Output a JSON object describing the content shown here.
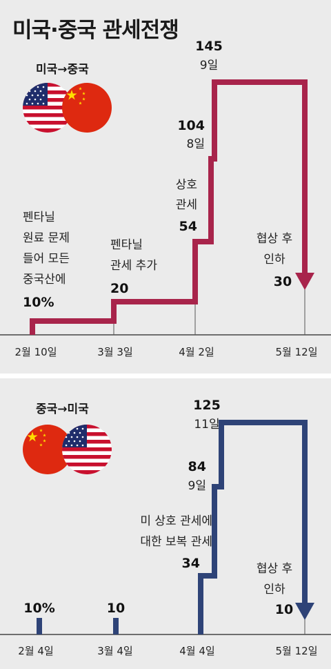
{
  "title": "미국·중국 관세전쟁",
  "colors": {
    "us_to_china": "#a8244b",
    "china_to_us": "#2e4377",
    "background": "#ebebeb"
  },
  "chart_data": [
    {
      "type": "line",
      "step": true,
      "name": "미국→중국",
      "flags": [
        "us-flag",
        "china-flag"
      ],
      "x": [
        "2월 10일",
        "3월 3일",
        "4월 2일",
        "4월 8일",
        "4월 9일",
        "5월 12일"
      ],
      "y": [
        10,
        20,
        54,
        104,
        145,
        30
      ],
      "x_ticks": [
        "2월 10일",
        "3월 3일",
        "4월 2일",
        "5월 12일"
      ],
      "annotations": {
        "a1": [
          "펜타닐",
          "원료 문제",
          "들어 모든",
          "중국산에"
        ],
        "a1_value": "10%",
        "a2": [
          "펜타닐",
          "관세 추가"
        ],
        "a2_value": "20",
        "a3": [
          "상호",
          "관세"
        ],
        "a3_value": "54",
        "a4_value": "104",
        "a4_date": "8일",
        "a5_value": "145",
        "a5_date": "9일",
        "a6": [
          "협상 후",
          "인하"
        ],
        "a6_value": "30"
      }
    },
    {
      "type": "bar",
      "name": "중국→미국",
      "flags": [
        "china-flag",
        "us-flag"
      ],
      "x": [
        "2월 4일",
        "3월 4일",
        "4월 4일",
        "4월 9일",
        "4월 11일",
        "5월 12일"
      ],
      "y": [
        10,
        10,
        34,
        84,
        125,
        10
      ],
      "x_ticks": [
        "2월 4일",
        "3월 4일",
        "4월 4일",
        "5월 12일"
      ],
      "annotations": {
        "b1_value": "10%",
        "b2_value": "10",
        "b3": [
          "미 상호 관세에",
          "대한 보복 관세"
        ],
        "b3_value": "34",
        "b4_value": "84",
        "b4_date": "9일",
        "b5_value": "125",
        "b5_date": "11일",
        "b6": [
          "협상 후",
          "인하"
        ],
        "b6_value": "10"
      }
    }
  ]
}
